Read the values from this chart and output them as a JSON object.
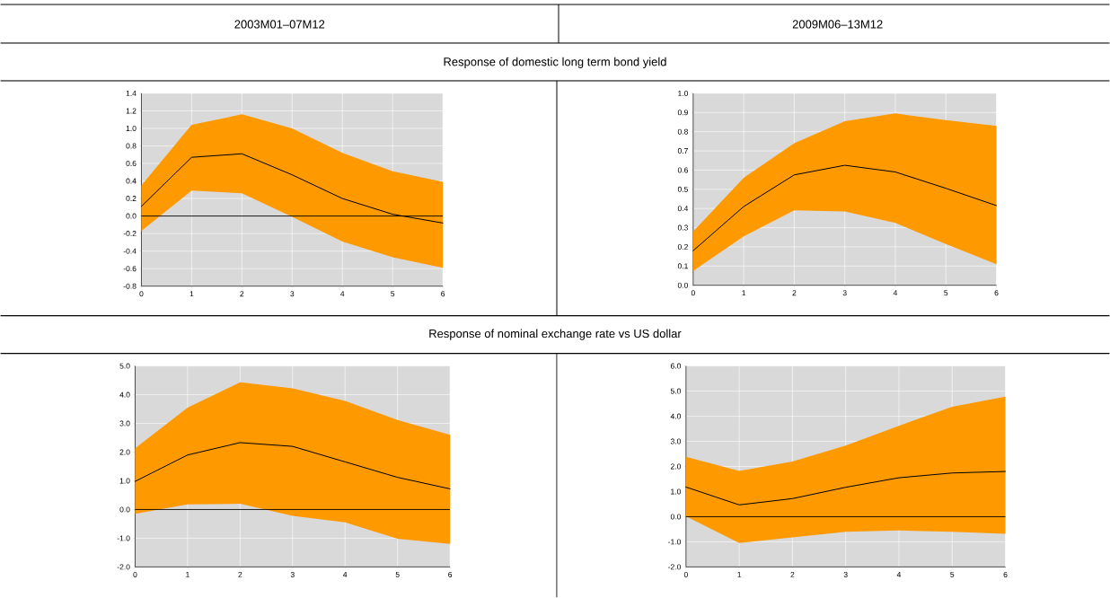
{
  "chart_data": [
    {
      "type": "other",
      "annotations": [
        "2003M01–07M12",
        "2009M06–13M12",
        "Response of domestic long term bond yield",
        "Response of nominal exchange rate vs US dollar"
      ]
    },
    {
      "type": "line",
      "x": [
        0,
        1,
        2,
        3,
        4,
        5,
        6
      ],
      "xlim": [
        0,
        6
      ],
      "xticks": [
        0,
        1,
        2,
        3,
        4,
        5,
        6
      ],
      "ylim": [
        -0.8,
        1.4
      ],
      "yticks": [
        {
          "value": -0.8,
          "label": "-0.8"
        },
        {
          "value": -0.6,
          "label": "-0.6"
        },
        {
          "value": -0.4,
          "label": "-0.4"
        },
        {
          "value": -0.2,
          "label": "-0.2"
        },
        {
          "value": 0,
          "label": "0.0"
        },
        {
          "value": 0.2,
          "label": "0.2"
        },
        {
          "value": 0.4,
          "label": "0.4"
        },
        {
          "value": 0.6,
          "label": "0.6"
        },
        {
          "value": 0.8,
          "label": "0.8"
        },
        {
          "value": 1.0,
          "label": "1.0"
        },
        {
          "value": 1.2,
          "label": "1.2"
        },
        {
          "value": 1.4,
          "label": "1.4"
        }
      ],
      "grid": true,
      "ref_lines": [
        {
          "axis": "y",
          "value": 0,
          "color": "#000000"
        }
      ],
      "series": [
        {
          "color": "#000000",
          "values": [
            0.11,
            0.67,
            0.71,
            0.47,
            0.2,
            0.02,
            -0.08
          ],
          "lower": [
            -0.17,
            0.29,
            0.26,
            -0.01,
            -0.29,
            -0.47,
            -0.59
          ],
          "upper": [
            0.35,
            1.04,
            1.16,
            1.0,
            0.72,
            0.51,
            0.39
          ]
        }
      ]
    },
    {
      "type": "line",
      "x": [
        0,
        1,
        2,
        3,
        4,
        5,
        6
      ],
      "xlim": [
        0,
        6
      ],
      "xticks": [
        0,
        1,
        2,
        3,
        4,
        5,
        6
      ],
      "ylim": [
        0,
        1.0
      ],
      "yticks": [
        {
          "value": 0,
          "label": "0.0"
        },
        {
          "value": 0.1,
          "label": "0.1"
        },
        {
          "value": 0.2,
          "label": "0.2"
        },
        {
          "value": 0.3,
          "label": "0.3"
        },
        {
          "value": 0.4,
          "label": "0.4"
        },
        {
          "value": 0.5,
          "label": "0.5"
        },
        {
          "value": 0.6,
          "label": "0.6"
        },
        {
          "value": 0.7,
          "label": "0.7"
        },
        {
          "value": 0.8,
          "label": "0.8"
        },
        {
          "value": 0.9,
          "label": "0.9"
        },
        {
          "value": 1.0,
          "label": "1.0"
        }
      ],
      "grid": true,
      "series": [
        {
          "color": "#000000",
          "values": [
            0.18,
            0.41,
            0.575,
            0.625,
            0.59,
            0.505,
            0.415
          ],
          "lower": [
            0.075,
            0.255,
            0.39,
            0.385,
            0.325,
            0.215,
            0.11
          ],
          "upper": [
            0.28,
            0.56,
            0.74,
            0.855,
            0.895,
            0.86,
            0.83
          ]
        }
      ]
    },
    {
      "type": "line",
      "x": [
        0,
        1,
        2,
        3,
        4,
        5,
        6
      ],
      "xlim": [
        0,
        6
      ],
      "xticks": [
        0,
        1,
        2,
        3,
        4,
        5,
        6
      ],
      "ylim": [
        -2.0,
        5.0
      ],
      "yticks": [
        {
          "value": -2,
          "label": "-2.0"
        },
        {
          "value": -1,
          "label": "-1.0"
        },
        {
          "value": 0,
          "label": "0.0"
        },
        {
          "value": 1,
          "label": "1.0"
        },
        {
          "value": 2,
          "label": "2.0"
        },
        {
          "value": 3,
          "label": "3.0"
        },
        {
          "value": 4,
          "label": "4.0"
        },
        {
          "value": 5,
          "label": "5.0"
        }
      ],
      "grid": true,
      "ref_lines": [
        {
          "axis": "y",
          "value": 0,
          "color": "#000000"
        }
      ],
      "series": [
        {
          "color": "#000000",
          "values": [
            0.98,
            1.9,
            2.33,
            2.2,
            1.66,
            1.12,
            0.72
          ],
          "lower": [
            -0.15,
            0.18,
            0.2,
            -0.22,
            -0.45,
            -1.02,
            -1.2
          ],
          "upper": [
            2.13,
            3.55,
            4.43,
            4.22,
            3.78,
            3.12,
            2.6
          ]
        }
      ]
    },
    {
      "type": "line",
      "x": [
        0,
        1,
        2,
        3,
        4,
        5,
        6
      ],
      "xlim": [
        0,
        6
      ],
      "xticks": [
        0,
        1,
        2,
        3,
        4,
        5,
        6
      ],
      "ylim": [
        -2.0,
        6.0
      ],
      "yticks": [
        {
          "value": -2,
          "label": "-2.0"
        },
        {
          "value": -1,
          "label": "-1.0"
        },
        {
          "value": 0,
          "label": "0.0"
        },
        {
          "value": 1,
          "label": "1.0"
        },
        {
          "value": 2,
          "label": "2.0"
        },
        {
          "value": 3,
          "label": "3.0"
        },
        {
          "value": 4,
          "label": "4.0"
        },
        {
          "value": 5,
          "label": "5.0"
        },
        {
          "value": 6,
          "label": "6.0"
        }
      ],
      "grid": true,
      "ref_lines": [
        {
          "axis": "y",
          "value": 0,
          "color": "#000000"
        }
      ],
      "series": [
        {
          "color": "#000000",
          "values": [
            1.18,
            0.47,
            0.72,
            1.17,
            1.55,
            1.74,
            1.8
          ],
          "lower": [
            0.02,
            -1.05,
            -0.82,
            -0.6,
            -0.55,
            -0.6,
            -0.68
          ],
          "upper": [
            2.38,
            1.82,
            2.2,
            2.83,
            3.62,
            4.38,
            4.78
          ]
        }
      ]
    }
  ]
}
